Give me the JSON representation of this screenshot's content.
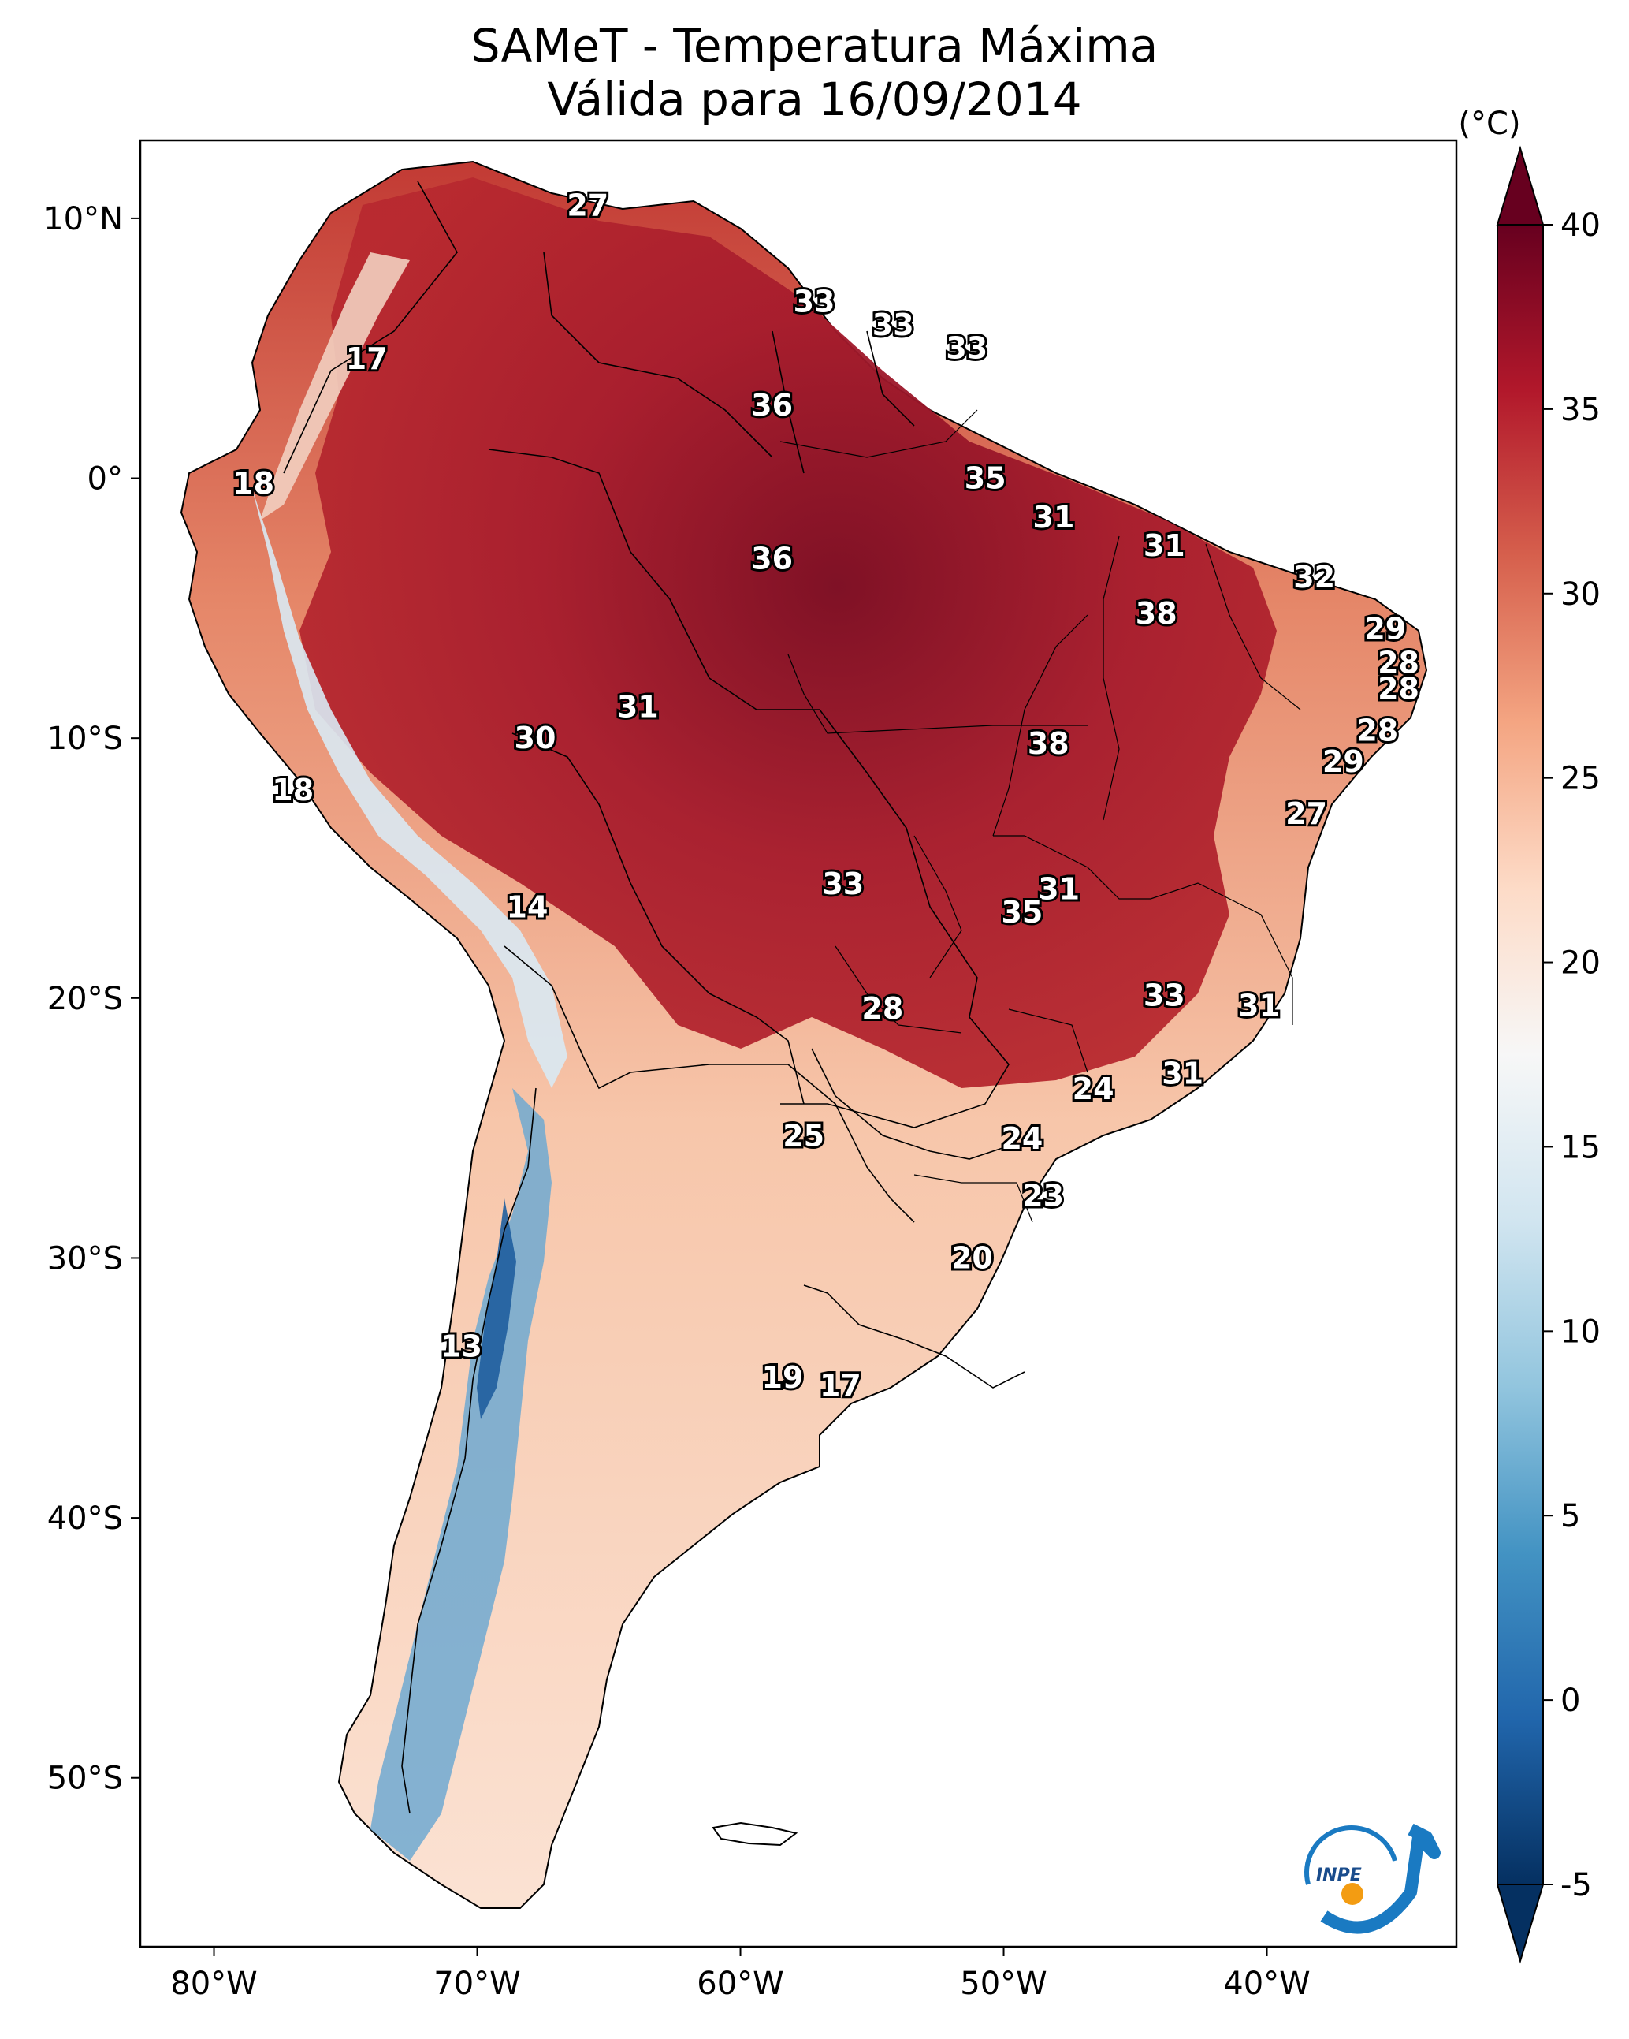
{
  "title": {
    "line1": "SAMeT - Temperatura Máxima",
    "line2": "Válida para 16/09/2014"
  },
  "map": {
    "extent": {
      "lon_min": -82.8,
      "lon_max": -32.8,
      "lat_min": -56.5,
      "lat_max": 13
    },
    "lon_ticks": [
      {
        "value": -80,
        "label": "80°W"
      },
      {
        "value": -70,
        "label": "70°W"
      },
      {
        "value": -60,
        "label": "60°W"
      },
      {
        "value": -50,
        "label": "50°W"
      },
      {
        "value": -40,
        "label": "40°W"
      }
    ],
    "lat_ticks": [
      {
        "value": 10,
        "label": "10°N"
      },
      {
        "value": 0,
        "label": "0°"
      },
      {
        "value": -10,
        "label": "10°S"
      },
      {
        "value": -20,
        "label": "20°S"
      },
      {
        "value": -30,
        "label": "30°S"
      },
      {
        "value": -40,
        "label": "40°S"
      },
      {
        "value": -50,
        "label": "50°S"
      }
    ],
    "stations": [
      {
        "lon": -65.8,
        "lat": 10.5,
        "value": "27"
      },
      {
        "lon": -74.2,
        "lat": 4.6,
        "value": "17"
      },
      {
        "lon": -57.2,
        "lat": 6.8,
        "value": "33"
      },
      {
        "lon": -54.2,
        "lat": 5.9,
        "value": "33"
      },
      {
        "lon": -51.4,
        "lat": 5.0,
        "value": "33"
      },
      {
        "lon": -58.8,
        "lat": 2.8,
        "value": "36"
      },
      {
        "lon": -50.7,
        "lat": 0.0,
        "value": "35"
      },
      {
        "lon": -78.5,
        "lat": -0.2,
        "value": "18"
      },
      {
        "lon": -48.1,
        "lat": -1.5,
        "value": "31"
      },
      {
        "lon": -58.8,
        "lat": -3.1,
        "value": "36"
      },
      {
        "lon": -43.9,
        "lat": -2.6,
        "value": "31"
      },
      {
        "lon": -38.2,
        "lat": -3.8,
        "value": "32"
      },
      {
        "lon": -44.2,
        "lat": -5.2,
        "value": "38"
      },
      {
        "lon": -35.5,
        "lat": -5.8,
        "value": "29"
      },
      {
        "lon": -35.0,
        "lat": -7.1,
        "value": "28"
      },
      {
        "lon": -35.0,
        "lat": -8.1,
        "value": "28"
      },
      {
        "lon": -63.9,
        "lat": -8.8,
        "value": "31"
      },
      {
        "lon": -67.8,
        "lat": -10.0,
        "value": "30"
      },
      {
        "lon": -48.3,
        "lat": -10.2,
        "value": "38"
      },
      {
        "lon": -35.8,
        "lat": -9.7,
        "value": "28"
      },
      {
        "lon": -37.1,
        "lat": -10.9,
        "value": "29"
      },
      {
        "lon": -77.0,
        "lat": -12.0,
        "value": "18"
      },
      {
        "lon": -38.5,
        "lat": -12.9,
        "value": "27"
      },
      {
        "lon": -68.1,
        "lat": -16.5,
        "value": "14"
      },
      {
        "lon": -56.1,
        "lat": -15.6,
        "value": "33"
      },
      {
        "lon": -47.9,
        "lat": -15.8,
        "value": "31"
      },
      {
        "lon": -49.3,
        "lat": -16.7,
        "value": "35"
      },
      {
        "lon": -54.6,
        "lat": -20.4,
        "value": "28"
      },
      {
        "lon": -43.9,
        "lat": -19.9,
        "value": "33"
      },
      {
        "lon": -40.3,
        "lat": -20.3,
        "value": "31"
      },
      {
        "lon": -43.2,
        "lat": -22.9,
        "value": "31"
      },
      {
        "lon": -46.6,
        "lat": -23.5,
        "value": "24"
      },
      {
        "lon": -57.6,
        "lat": -25.3,
        "value": "25"
      },
      {
        "lon": -49.3,
        "lat": -25.4,
        "value": "24"
      },
      {
        "lon": -48.5,
        "lat": -27.6,
        "value": "23"
      },
      {
        "lon": -51.2,
        "lat": -30.0,
        "value": "20"
      },
      {
        "lon": -70.6,
        "lat": -33.4,
        "value": "13"
      },
      {
        "lon": -58.4,
        "lat": -34.6,
        "value": "19"
      },
      {
        "lon": -56.2,
        "lat": -34.9,
        "value": "17"
      }
    ]
  },
  "colorbar": {
    "unit_label": "(°C)",
    "min": -5,
    "max": 40,
    "ticks": [
      {
        "value": 40,
        "label": "40"
      },
      {
        "value": 35,
        "label": "35"
      },
      {
        "value": 30,
        "label": "30"
      },
      {
        "value": 25,
        "label": "25"
      },
      {
        "value": 20,
        "label": "20"
      },
      {
        "value": 15,
        "label": "15"
      },
      {
        "value": 10,
        "label": "10"
      },
      {
        "value": 5,
        "label": "5"
      },
      {
        "value": 0,
        "label": "0"
      },
      {
        "value": -5,
        "label": "-5"
      }
    ],
    "stops": [
      "#053061",
      "#2166ac",
      "#4393c3",
      "#92c5de",
      "#d1e5f0",
      "#f7f7f7",
      "#fddbc7",
      "#f4a582",
      "#d6604d",
      "#b2182b",
      "#67001f"
    ]
  },
  "logo": {
    "text": "INPE",
    "arc_color": "#1a7ac2",
    "dot_color": "#f39c12"
  }
}
